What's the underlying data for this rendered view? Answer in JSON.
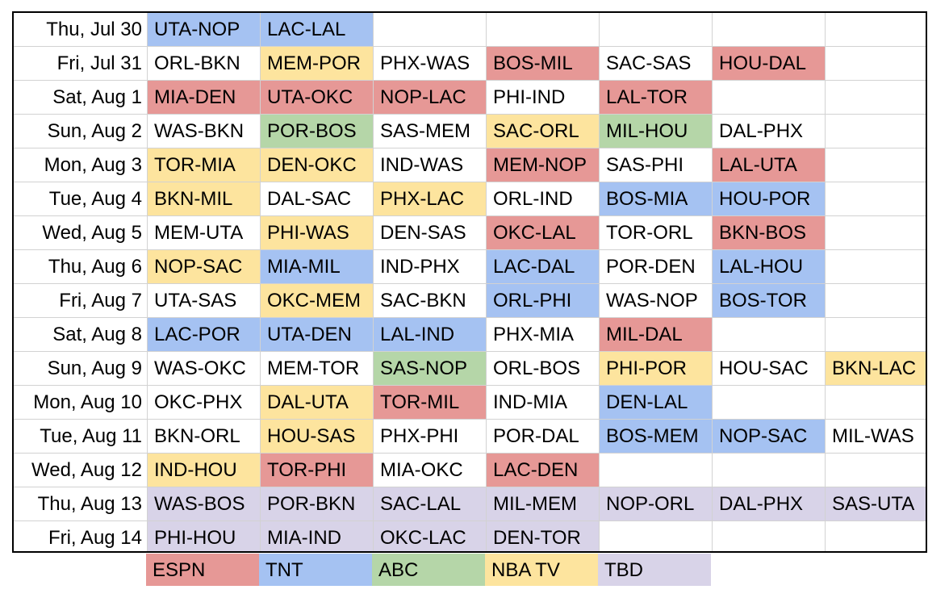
{
  "colors": {
    "espn": "#e69896",
    "tnt": "#a5c2f2",
    "abc": "#b5d6a8",
    "nbatv": "#fde49e",
    "tbd": "#d8d3e8",
    "none": "#ffffff"
  },
  "schedule": [
    {
      "date": "Thu, Jul 30",
      "games": [
        {
          "text": "UTA-NOP",
          "net": "tnt"
        },
        {
          "text": "LAC-LAL",
          "net": "tnt"
        },
        {
          "text": "",
          "net": "none"
        },
        {
          "text": "",
          "net": "none"
        },
        {
          "text": "",
          "net": "none"
        },
        {
          "text": "",
          "net": "none"
        },
        {
          "text": "",
          "net": "none"
        }
      ]
    },
    {
      "date": "Fri, Jul 31",
      "games": [
        {
          "text": "ORL-BKN",
          "net": "none"
        },
        {
          "text": "MEM-POR",
          "net": "nbatv"
        },
        {
          "text": "PHX-WAS",
          "net": "none"
        },
        {
          "text": "BOS-MIL",
          "net": "espn"
        },
        {
          "text": "SAC-SAS",
          "net": "none"
        },
        {
          "text": "HOU-DAL",
          "net": "espn"
        },
        {
          "text": "",
          "net": "none"
        }
      ]
    },
    {
      "date": "Sat, Aug 1",
      "games": [
        {
          "text": "MIA-DEN",
          "net": "espn"
        },
        {
          "text": "UTA-OKC",
          "net": "espn"
        },
        {
          "text": "NOP-LAC",
          "net": "espn"
        },
        {
          "text": "PHI-IND",
          "net": "none"
        },
        {
          "text": "LAL-TOR",
          "net": "espn"
        },
        {
          "text": "",
          "net": "none"
        },
        {
          "text": "",
          "net": "none"
        }
      ]
    },
    {
      "date": "Sun, Aug 2",
      "games": [
        {
          "text": "WAS-BKN",
          "net": "none"
        },
        {
          "text": "POR-BOS",
          "net": "abc"
        },
        {
          "text": "SAS-MEM",
          "net": "none"
        },
        {
          "text": "SAC-ORL",
          "net": "nbatv"
        },
        {
          "text": "MIL-HOU",
          "net": "abc"
        },
        {
          "text": "DAL-PHX",
          "net": "none"
        },
        {
          "text": "",
          "net": "none"
        }
      ]
    },
    {
      "date": "Mon, Aug 3",
      "games": [
        {
          "text": "TOR-MIA",
          "net": "nbatv"
        },
        {
          "text": "DEN-OKC",
          "net": "nbatv"
        },
        {
          "text": "IND-WAS",
          "net": "none"
        },
        {
          "text": "MEM-NOP",
          "net": "espn"
        },
        {
          "text": "SAS-PHI",
          "net": "none"
        },
        {
          "text": "LAL-UTA",
          "net": "espn"
        },
        {
          "text": "",
          "net": "none"
        }
      ]
    },
    {
      "date": "Tue, Aug 4",
      "games": [
        {
          "text": "BKN-MIL",
          "net": "nbatv"
        },
        {
          "text": "DAL-SAC",
          "net": "none"
        },
        {
          "text": "PHX-LAC",
          "net": "nbatv"
        },
        {
          "text": "ORL-IND",
          "net": "none"
        },
        {
          "text": "BOS-MIA",
          "net": "tnt"
        },
        {
          "text": "HOU-POR",
          "net": "tnt"
        },
        {
          "text": "",
          "net": "none"
        }
      ]
    },
    {
      "date": "Wed, Aug 5",
      "games": [
        {
          "text": "MEM-UTA",
          "net": "none"
        },
        {
          "text": "PHI-WAS",
          "net": "nbatv"
        },
        {
          "text": "DEN-SAS",
          "net": "none"
        },
        {
          "text": "OKC-LAL",
          "net": "espn"
        },
        {
          "text": "TOR-ORL",
          "net": "none"
        },
        {
          "text": "BKN-BOS",
          "net": "espn"
        },
        {
          "text": "",
          "net": "none"
        }
      ]
    },
    {
      "date": "Thu, Aug 6",
      "games": [
        {
          "text": "NOP-SAC",
          "net": "nbatv"
        },
        {
          "text": "MIA-MIL",
          "net": "tnt"
        },
        {
          "text": "IND-PHX",
          "net": "none"
        },
        {
          "text": "LAC-DAL",
          "net": "tnt"
        },
        {
          "text": "POR-DEN",
          "net": "none"
        },
        {
          "text": "LAL-HOU",
          "net": "tnt"
        },
        {
          "text": "",
          "net": "none"
        }
      ]
    },
    {
      "date": "Fri, Aug 7",
      "games": [
        {
          "text": "UTA-SAS",
          "net": "none"
        },
        {
          "text": "OKC-MEM",
          "net": "nbatv"
        },
        {
          "text": "SAC-BKN",
          "net": "none"
        },
        {
          "text": "ORL-PHI",
          "net": "tnt"
        },
        {
          "text": "WAS-NOP",
          "net": "none"
        },
        {
          "text": "BOS-TOR",
          "net": "tnt"
        },
        {
          "text": "",
          "net": "none"
        }
      ]
    },
    {
      "date": "Sat, Aug 8",
      "games": [
        {
          "text": "LAC-POR",
          "net": "tnt"
        },
        {
          "text": "UTA-DEN",
          "net": "tnt"
        },
        {
          "text": "LAL-IND",
          "net": "tnt"
        },
        {
          "text": "PHX-MIA",
          "net": "none"
        },
        {
          "text": "MIL-DAL",
          "net": "espn"
        },
        {
          "text": "",
          "net": "none"
        },
        {
          "text": "",
          "net": "none"
        }
      ]
    },
    {
      "date": "Sun, Aug 9",
      "games": [
        {
          "text": "WAS-OKC",
          "net": "none"
        },
        {
          "text": "MEM-TOR",
          "net": "none"
        },
        {
          "text": "SAS-NOP",
          "net": "abc"
        },
        {
          "text": "ORL-BOS",
          "net": "none"
        },
        {
          "text": "PHI-POR",
          "net": "nbatv"
        },
        {
          "text": "HOU-SAC",
          "net": "none"
        },
        {
          "text": "BKN-LAC",
          "net": "nbatv"
        }
      ]
    },
    {
      "date": "Mon, Aug 10",
      "games": [
        {
          "text": "OKC-PHX",
          "net": "none"
        },
        {
          "text": "DAL-UTA",
          "net": "nbatv"
        },
        {
          "text": "TOR-MIL",
          "net": "espn"
        },
        {
          "text": "IND-MIA",
          "net": "none"
        },
        {
          "text": "DEN-LAL",
          "net": "tnt"
        },
        {
          "text": "",
          "net": "none"
        },
        {
          "text": "",
          "net": "none"
        }
      ]
    },
    {
      "date": "Tue, Aug 11",
      "games": [
        {
          "text": "BKN-ORL",
          "net": "none"
        },
        {
          "text": "HOU-SAS",
          "net": "nbatv"
        },
        {
          "text": "PHX-PHI",
          "net": "none"
        },
        {
          "text": "POR-DAL",
          "net": "none"
        },
        {
          "text": "BOS-MEM",
          "net": "tnt"
        },
        {
          "text": "NOP-SAC",
          "net": "tnt"
        },
        {
          "text": "MIL-WAS",
          "net": "none"
        }
      ]
    },
    {
      "date": "Wed, Aug 12",
      "games": [
        {
          "text": "IND-HOU",
          "net": "nbatv"
        },
        {
          "text": "TOR-PHI",
          "net": "espn"
        },
        {
          "text": "MIA-OKC",
          "net": "none"
        },
        {
          "text": "LAC-DEN",
          "net": "espn"
        },
        {
          "text": "",
          "net": "none"
        },
        {
          "text": "",
          "net": "none"
        },
        {
          "text": "",
          "net": "none"
        }
      ]
    },
    {
      "date": "Thu, Aug 13",
      "games": [
        {
          "text": "WAS-BOS",
          "net": "tbd"
        },
        {
          "text": "POR-BKN",
          "net": "tbd"
        },
        {
          "text": "SAC-LAL",
          "net": "tbd"
        },
        {
          "text": "MIL-MEM",
          "net": "tbd"
        },
        {
          "text": "NOP-ORL",
          "net": "tbd"
        },
        {
          "text": "DAL-PHX",
          "net": "tbd"
        },
        {
          "text": "SAS-UTA",
          "net": "tbd"
        }
      ]
    },
    {
      "date": "Fri, Aug 14",
      "games": [
        {
          "text": "PHI-HOU",
          "net": "tbd"
        },
        {
          "text": "MIA-IND",
          "net": "tbd"
        },
        {
          "text": "OKC-LAC",
          "net": "tbd"
        },
        {
          "text": "DEN-TOR",
          "net": "tbd"
        },
        {
          "text": "",
          "net": "none"
        },
        {
          "text": "",
          "net": "none"
        },
        {
          "text": "",
          "net": "none"
        }
      ]
    }
  ],
  "legend": [
    {
      "label": "ESPN",
      "net": "espn"
    },
    {
      "label": "TNT",
      "net": "tnt"
    },
    {
      "label": "ABC",
      "net": "abc"
    },
    {
      "label": "NBA TV",
      "net": "nbatv"
    },
    {
      "label": "TBD",
      "net": "tbd"
    }
  ]
}
